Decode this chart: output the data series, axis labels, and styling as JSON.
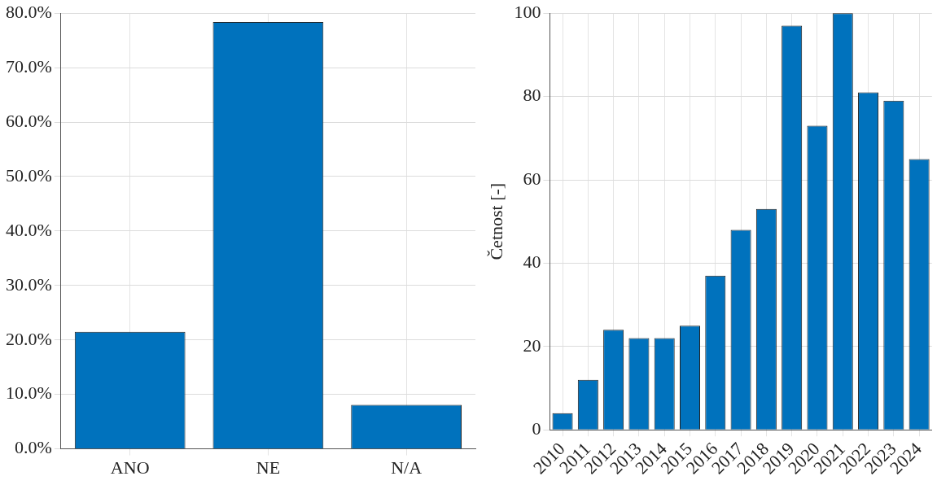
{
  "chart_data": [
    {
      "type": "bar",
      "categories": [
        "ANO",
        "NE",
        "N/A"
      ],
      "values": [
        21.5,
        78.4,
        8.1
      ],
      "color": "#0072bd",
      "ylim": [
        0,
        80
      ],
      "yticks": [
        {
          "value": 0,
          "label": "0.0%"
        },
        {
          "value": 10,
          "label": "10.0%"
        },
        {
          "value": 20,
          "label": "20.0%"
        },
        {
          "value": 30,
          "label": "30.0%"
        },
        {
          "value": 40,
          "label": "40.0%"
        },
        {
          "value": 50,
          "label": "50.0%"
        },
        {
          "value": 60,
          "label": "60.0%"
        },
        {
          "value": 70,
          "label": "70.0%"
        },
        {
          "value": 80,
          "label": "80.0%"
        }
      ],
      "grid": true,
      "legend": false
    },
    {
      "type": "bar",
      "ylabel": "Četnost [-]",
      "categories": [
        "2010",
        "2011",
        "2012",
        "2013",
        "2014",
        "2015",
        "2016",
        "2017",
        "2018",
        "2019",
        "2020",
        "2021",
        "2022",
        "2023",
        "2024"
      ],
      "values": [
        4,
        12,
        24,
        22,
        22,
        25,
        37,
        48,
        53,
        97,
        73,
        100,
        81,
        79,
        65
      ],
      "color": "#0072bd",
      "ylim": [
        0,
        100
      ],
      "yticks": [
        0,
        20,
        40,
        60,
        80,
        100
      ],
      "grid": true,
      "legend": false
    }
  ]
}
